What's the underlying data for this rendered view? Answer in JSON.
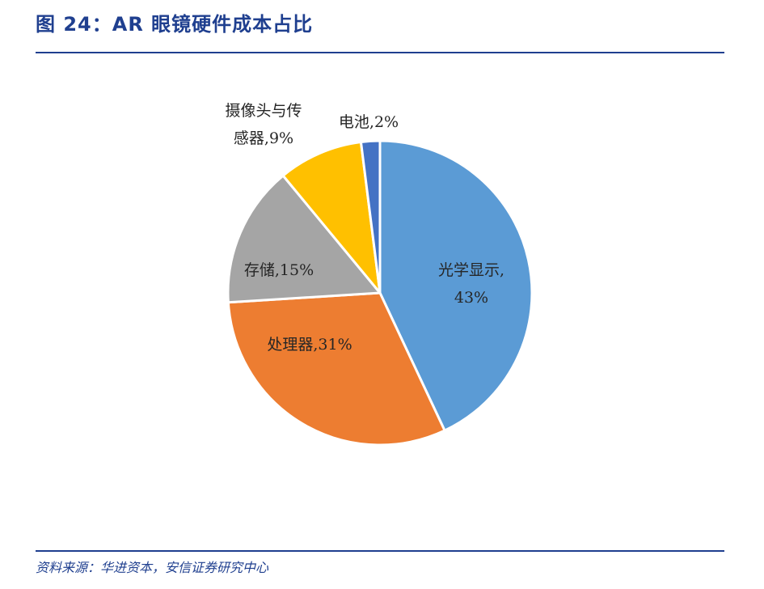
{
  "header": {
    "title": "图 24：AR 眼镜硬件成本占比"
  },
  "footer": {
    "source": "资料来源：华进资本，安信证券研究中心"
  },
  "chart_data": {
    "type": "pie",
    "start_angle_deg": 0,
    "direction": "clockwise",
    "slices": [
      {
        "label": "光学显示",
        "value": 43,
        "value_label": "43%",
        "color": "#5b9bd5",
        "label_lines": [
          "光学显示,",
          "43%"
        ]
      },
      {
        "label": "处理器",
        "value": 31,
        "value_label": "31%",
        "color": "#ed7d31",
        "label_lines": [
          "处理器,31%"
        ]
      },
      {
        "label": "存储",
        "value": 15,
        "value_label": "15%",
        "color": "#a5a5a5",
        "label_lines": [
          "存储,15%"
        ]
      },
      {
        "label": "摄像头与传感器",
        "value": 9,
        "value_label": "9%",
        "color": "#ffc000",
        "label_lines": [
          "摄像头与传",
          "感器,9%"
        ]
      },
      {
        "label": "电池",
        "value": 2,
        "value_label": "2%",
        "color": "#4472c4",
        "label_lines": [
          "电池,2%"
        ]
      }
    ]
  }
}
